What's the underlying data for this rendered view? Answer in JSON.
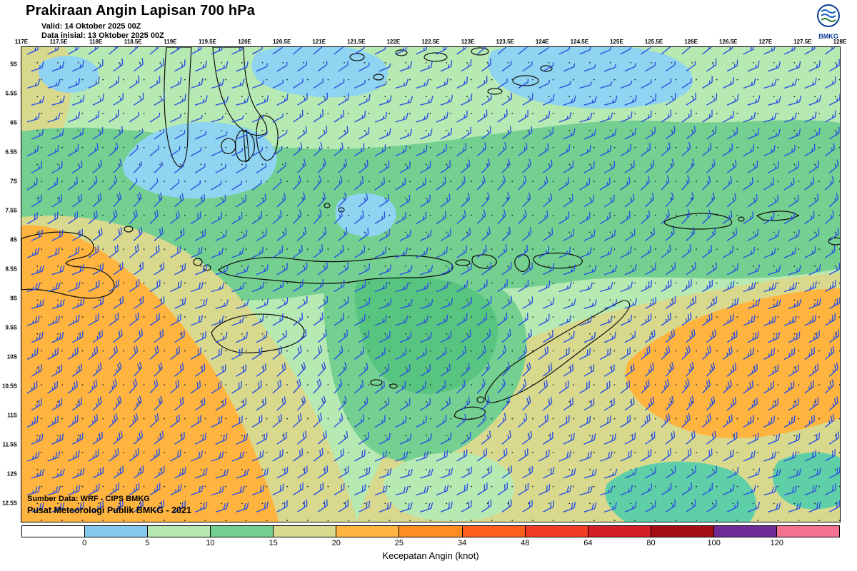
{
  "header": {
    "title": "Prakiraan Angin Lapisan 700 hPa",
    "valid_line": "Valid: 14 Oktober 2025 00Z",
    "init_line": "Data inisial: 13 Oktober 2025 00Z",
    "logo_text": "BMKG"
  },
  "map": {
    "lon_labels": [
      "117E",
      "117.5E",
      "118E",
      "118.5E",
      "119E",
      "119.5E",
      "120E",
      "120.5E",
      "121E",
      "121.5E",
      "122E",
      "122.5E",
      "123E",
      "123.5E",
      "124E",
      "124.5E",
      "125E",
      "125.5E",
      "126E",
      "126.5E",
      "127E",
      "127.5E",
      "128E"
    ],
    "lat_labels": [
      "5S",
      "5.5S",
      "6S",
      "6.5S",
      "7S",
      "7.5S",
      "8S",
      "8.5S",
      "9S",
      "9.5S",
      "10S",
      "10.5S",
      "11S",
      "11.5S",
      "12S",
      "12.5S"
    ],
    "source_line1": "Sumber Data: WRF - CIPS BMKG",
    "source_line2": "Pusat Meteorologi Publik BMKG - 2021"
  },
  "legend": {
    "title": "Kecepatan Angin (knot)",
    "tick_labels": [
      "0",
      "5",
      "10",
      "15",
      "20",
      "25",
      "34",
      "48",
      "64",
      "80",
      "100",
      "120"
    ],
    "cell_colors": [
      "#ffffff",
      "#85c9ec",
      "#b7e9b2",
      "#74d091",
      "#d9d98e",
      "#ffb440",
      "#ff8d22",
      "#ff5f1e",
      "#f03c24",
      "#d51f26",
      "#a60d14",
      "#6f2c96",
      "#f4718f"
    ]
  },
  "wind": {
    "barb_color": "#2a52e0",
    "cols": 40,
    "rows": 28,
    "shaft_len": 16
  }
}
